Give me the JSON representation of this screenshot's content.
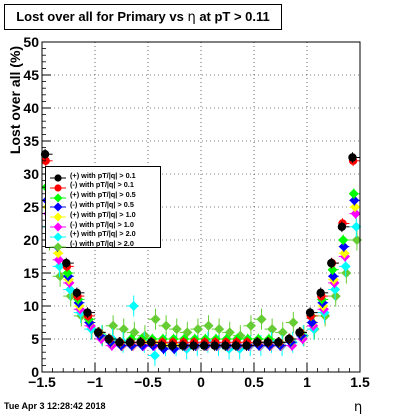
{
  "title": {
    "main": "Lost over all for Primary vs ",
    "symbol": "η",
    "suffix": " at pT > 0.11"
  },
  "timestamp": "Tue Apr  3 12:28:42 2018",
  "colors": {
    "pos_0_1": "#000000",
    "neg_0_1": "#ff0000",
    "pos_0_5": "#00ff00",
    "neg_0_5": "#0000ff",
    "pos_1_0": "#ffff00",
    "neg_1_0": "#ff00ff",
    "pos_2_0": "#00ffff",
    "neg_2_0": "#66cc33"
  },
  "chart_data": {
    "type": "scatter",
    "xlabel": "η",
    "ylabel": "Lost over all (%)",
    "xlim": [
      -1.5,
      1.5
    ],
    "ylim": [
      0,
      50
    ],
    "x_ticks": [
      "−1.5",
      "−1",
      "−0.5",
      "0",
      "0.5",
      "1",
      "1.5"
    ],
    "y_ticks": [
      "0",
      "5",
      "10",
      "15",
      "20",
      "25",
      "30",
      "35",
      "40",
      "45",
      "50"
    ],
    "grid": true,
    "legend_position": "left",
    "series": [
      {
        "name": "(+) with pT/|q| > 0.1",
        "color": "#000000",
        "marker": "circle",
        "x": [
          -1.45,
          -1.35,
          -1.25,
          -1.15,
          -1.05,
          -0.95,
          -0.85,
          -0.75,
          -0.65,
          -0.55,
          -0.45,
          -0.35,
          -0.25,
          -0.15,
          -0.05,
          0.05,
          0.15,
          0.25,
          0.35,
          0.45,
          0.55,
          0.65,
          0.75,
          0.85,
          0.95,
          1.05,
          1.15,
          1.25,
          1.35,
          1.45
        ],
        "y": [
          33.0,
          22.0,
          16.5,
          12.0,
          9.0,
          6.0,
          5.0,
          4.5,
          4.5,
          4.5,
          4.5,
          4.0,
          4.0,
          4.0,
          4.0,
          4.0,
          4.0,
          4.0,
          4.0,
          4.0,
          4.5,
          4.5,
          4.5,
          5.0,
          6.0,
          9.0,
          12.0,
          16.5,
          22.0,
          32.5
        ]
      },
      {
        "name": "(-) with pT/|q| > 0.1",
        "color": "#ff0000",
        "marker": "circle",
        "x": [
          -1.45,
          -1.35,
          -1.25,
          -1.15,
          -1.05,
          -0.95,
          -0.85,
          -0.75,
          -0.65,
          -0.55,
          -0.45,
          -0.35,
          -0.25,
          -0.15,
          -0.05,
          0.05,
          0.15,
          0.25,
          0.35,
          0.45,
          0.55,
          0.65,
          0.75,
          0.85,
          0.95,
          1.05,
          1.15,
          1.25,
          1.35,
          1.45
        ],
        "y": [
          32.0,
          21.5,
          16.0,
          11.5,
          8.5,
          6.0,
          5.0,
          4.5,
          4.5,
          4.5,
          4.5,
          4.5,
          4.5,
          4.5,
          4.5,
          4.5,
          4.5,
          4.5,
          4.5,
          4.5,
          4.5,
          4.5,
          4.5,
          5.0,
          6.0,
          8.5,
          11.5,
          16.5,
          22.5,
          32.0
        ]
      },
      {
        "name": "(+) with pT/|q| > 0.5",
        "color": "#00ff00",
        "marker": "diamond",
        "x": [
          -1.45,
          -1.35,
          -1.25,
          -1.15,
          -1.05,
          -0.95,
          -0.85,
          -0.75,
          -0.65,
          -0.55,
          -0.45,
          -0.35,
          -0.25,
          -0.15,
          -0.05,
          0.05,
          0.15,
          0.25,
          0.35,
          0.45,
          0.55,
          0.65,
          0.75,
          0.85,
          0.95,
          1.05,
          1.15,
          1.25,
          1.35,
          1.45
        ],
        "y": [
          28.0,
          20.0,
          15.0,
          11.0,
          8.0,
          6.0,
          5.0,
          4.5,
          5.0,
          5.0,
          5.0,
          5.0,
          5.0,
          5.0,
          5.0,
          5.0,
          5.0,
          5.0,
          5.0,
          5.0,
          5.0,
          5.0,
          4.5,
          5.0,
          6.0,
          8.5,
          11.0,
          15.5,
          20.0,
          27.0
        ]
      },
      {
        "name": "(-) with pT/|q| > 0.5",
        "color": "#0000ff",
        "marker": "diamond",
        "x": [
          -1.45,
          -1.35,
          -1.25,
          -1.15,
          -1.05,
          -0.95,
          -0.85,
          -0.75,
          -0.65,
          -0.55,
          -0.45,
          -0.35,
          -0.25,
          -0.15,
          -0.05,
          0.05,
          0.15,
          0.25,
          0.35,
          0.45,
          0.55,
          0.65,
          0.75,
          0.85,
          0.95,
          1.05,
          1.15,
          1.25,
          1.35,
          1.45
        ],
        "y": [
          26.0,
          19.0,
          14.5,
          10.5,
          7.5,
          5.5,
          4.5,
          4.0,
          4.0,
          4.0,
          4.0,
          3.5,
          3.5,
          4.0,
          4.0,
          4.0,
          4.0,
          4.0,
          4.0,
          4.0,
          4.0,
          4.0,
          4.0,
          4.5,
          5.5,
          7.5,
          10.5,
          14.5,
          19.0,
          26.0
        ]
      },
      {
        "name": "(+) with pT/|q| > 1.0",
        "color": "#ffff00",
        "marker": "diamond",
        "x": [
          -1.45,
          -1.35,
          -1.25,
          -1.15,
          -1.05,
          -0.95,
          -0.85,
          -0.75,
          -0.65,
          -0.55,
          -0.45,
          -0.35,
          -0.25,
          -0.15,
          -0.05,
          0.05,
          0.15,
          0.25,
          0.35,
          0.45,
          0.55,
          0.65,
          0.75,
          0.85,
          0.95,
          1.05,
          1.15,
          1.25,
          1.35,
          1.45
        ],
        "y": [
          25.0,
          18.0,
          14.0,
          10.0,
          7.5,
          5.5,
          4.5,
          4.0,
          4.0,
          4.5,
          4.5,
          4.0,
          4.0,
          4.0,
          4.0,
          4.0,
          4.0,
          4.0,
          4.0,
          4.0,
          4.0,
          4.0,
          4.0,
          4.5,
          5.5,
          7.5,
          10.0,
          14.0,
          18.0,
          25.0
        ]
      },
      {
        "name": "(-) with pT/|q| > 1.0",
        "color": "#ff00ff",
        "marker": "diamond",
        "x": [
          -1.45,
          -1.35,
          -1.25,
          -1.15,
          -1.05,
          -0.95,
          -0.85,
          -0.75,
          -0.65,
          -0.55,
          -0.45,
          -0.35,
          -0.25,
          -0.15,
          -0.05,
          0.05,
          0.15,
          0.25,
          0.35,
          0.45,
          0.55,
          0.65,
          0.75,
          0.85,
          0.95,
          1.05,
          1.15,
          1.25,
          1.35,
          1.45
        ],
        "y": [
          24.0,
          17.0,
          13.5,
          9.5,
          7.0,
          5.0,
          4.0,
          4.0,
          4.0,
          4.0,
          4.0,
          4.0,
          4.0,
          4.0,
          4.0,
          4.0,
          4.0,
          4.0,
          4.0,
          4.0,
          4.0,
          4.0,
          4.0,
          4.0,
          5.0,
          7.0,
          9.5,
          13.5,
          17.5,
          24.0
        ]
      },
      {
        "name": "(+) with pT/|q| > 2.0",
        "color": "#00ffff",
        "marker": "diamond",
        "x": [
          -1.45,
          -1.35,
          -1.25,
          -1.15,
          -1.05,
          -0.95,
          -0.85,
          -0.75,
          -0.65,
          -0.55,
          -0.45,
          -0.35,
          -0.25,
          -0.15,
          -0.05,
          0.05,
          0.15,
          0.25,
          0.35,
          0.45,
          0.55,
          0.65,
          0.75,
          0.85,
          0.95,
          1.05,
          1.15,
          1.25,
          1.35,
          1.45
        ],
        "y": [
          22.0,
          16.0,
          12.5,
          9.0,
          6.5,
          5.5,
          5.0,
          4.5,
          10.0,
          4.5,
          2.5,
          4.0,
          4.0,
          3.5,
          4.0,
          4.5,
          4.0,
          3.5,
          3.5,
          4.0,
          4.0,
          4.5,
          4.0,
          4.5,
          5.5,
          6.5,
          9.0,
          12.5,
          16.0,
          22.0
        ]
      },
      {
        "name": "(-) with pT/|q| > 2.0",
        "color": "#66cc33",
        "marker": "diamond",
        "x": [
          -1.45,
          -1.35,
          -1.25,
          -1.15,
          -1.05,
          -0.95,
          -0.85,
          -0.75,
          -0.65,
          -0.55,
          -0.45,
          -0.35,
          -0.25,
          -0.15,
          -0.05,
          0.05,
          0.15,
          0.25,
          0.35,
          0.45,
          0.55,
          0.65,
          0.75,
          0.85,
          0.95,
          1.05,
          1.15,
          1.25,
          1.35,
          1.45
        ],
        "y": [
          20.0,
          14.5,
          11.5,
          8.5,
          6.5,
          5.5,
          7.0,
          6.5,
          6.0,
          5.5,
          8.0,
          7.0,
          6.5,
          6.0,
          6.5,
          7.0,
          6.5,
          6.0,
          5.5,
          7.0,
          8.0,
          6.5,
          6.0,
          7.5,
          5.5,
          6.5,
          8.5,
          11.5,
          15.0,
          20.0
        ]
      }
    ]
  }
}
